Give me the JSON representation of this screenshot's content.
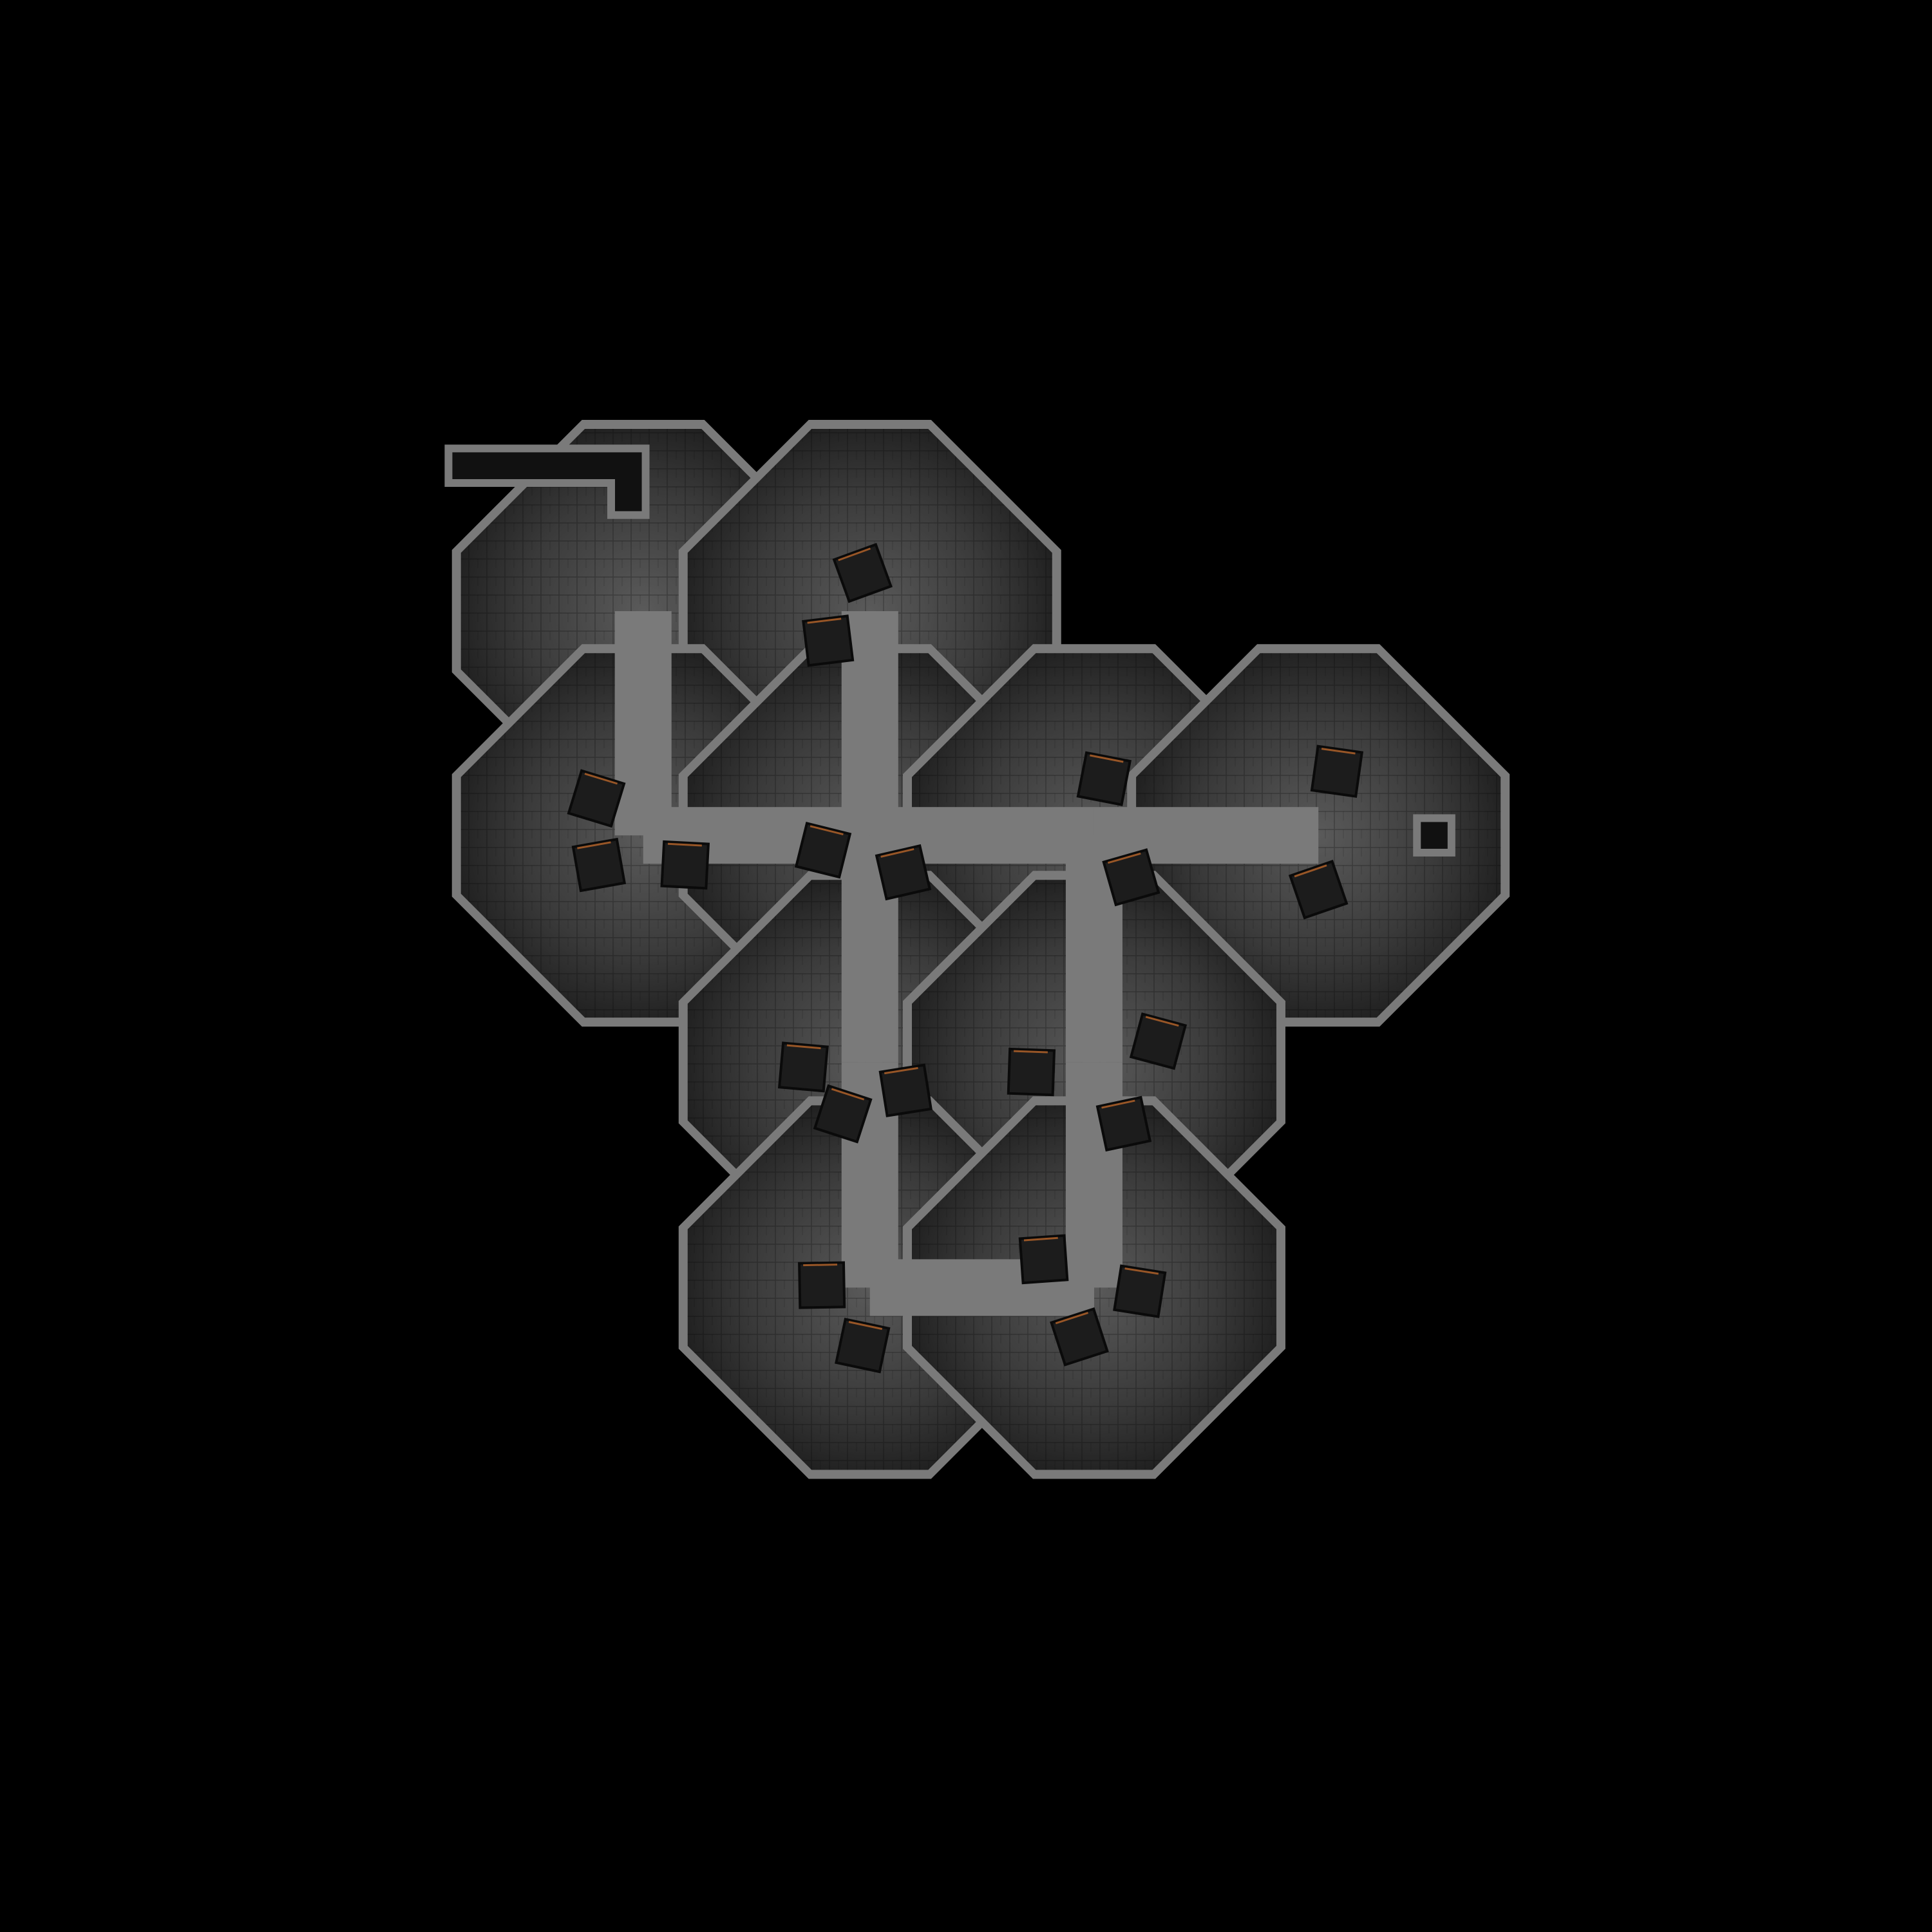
{
  "map": {
    "background_color": "#000000",
    "wall_color": "#7a7a7a",
    "wall_dark_color": "#3a3a3a",
    "floor_light_color": "#5a5a5a",
    "floor_dark_color": "#141414",
    "crate_color": "#1c1c1c",
    "ember_color": "#b8652a"
  },
  "rooms": [
    {
      "id": "room-top-left"
    },
    {
      "id": "room-top-middle"
    },
    {
      "id": "room-mid-left"
    },
    {
      "id": "room-center"
    },
    {
      "id": "room-mid-right"
    },
    {
      "id": "room-far-right"
    },
    {
      "id": "room-lower-left"
    },
    {
      "id": "room-lower-right"
    },
    {
      "id": "room-bottom-left"
    },
    {
      "id": "room-bottom-right"
    }
  ],
  "corridors": [
    {
      "id": "corridor-entrance"
    },
    {
      "id": "corridor-exit-east"
    }
  ],
  "crates_total": 22
}
